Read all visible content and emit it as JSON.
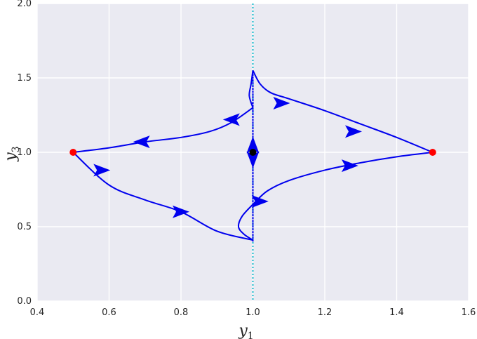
{
  "chart_data": {
    "type": "line",
    "xlabel": "y",
    "xlabel_sub": "1",
    "ylabel": "y",
    "ylabel_sub": "3",
    "xlim": [
      0.4,
      1.6
    ],
    "ylim": [
      0.0,
      2.0
    ],
    "xticks": [
      "0.4",
      "0.6",
      "0.8",
      "1.0",
      "1.2",
      "1.4",
      "1.6"
    ],
    "yticks": [
      "0.0",
      "0.5",
      "1.0",
      "1.5",
      "2.0"
    ],
    "grid": true,
    "background": "#eaeaf2",
    "colors": {
      "trajectory": "#0000ee",
      "vertical_line": "#17becf",
      "endpoint": "#ff0000",
      "center": "#000000"
    },
    "vertical_line_x": 1.0,
    "endpoints": [
      {
        "x": 0.5,
        "y": 1.0
      },
      {
        "x": 1.5,
        "y": 1.0
      }
    ],
    "center_point": {
      "x": 1.0,
      "y": 1.0
    },
    "trajectories": [
      {
        "points": [
          [
            0.5,
            1.0
          ],
          [
            0.6,
            1.03
          ],
          [
            0.7,
            1.07
          ],
          [
            0.8,
            1.1
          ],
          [
            0.88,
            1.14
          ],
          [
            0.94,
            1.2
          ],
          [
            1.0,
            1.3
          ]
        ]
      },
      {
        "points": [
          [
            1.0,
            1.3
          ],
          [
            0.99,
            1.38
          ],
          [
            0.995,
            1.46
          ],
          [
            1.0,
            1.55
          ]
        ]
      },
      {
        "points": [
          [
            1.0,
            1.55
          ],
          [
            1.02,
            1.46
          ],
          [
            1.05,
            1.4
          ],
          [
            1.1,
            1.36
          ],
          [
            1.2,
            1.28
          ],
          [
            1.3,
            1.19
          ],
          [
            1.4,
            1.1
          ],
          [
            1.5,
            1.0
          ]
        ]
      },
      {
        "points": [
          [
            1.5,
            1.0
          ],
          [
            1.4,
            0.97
          ],
          [
            1.3,
            0.93
          ],
          [
            1.2,
            0.88
          ],
          [
            1.1,
            0.81
          ],
          [
            1.04,
            0.74
          ],
          [
            1.0,
            0.65
          ]
        ]
      },
      {
        "points": [
          [
            1.0,
            0.65
          ],
          [
            0.97,
            0.57
          ],
          [
            0.96,
            0.5
          ],
          [
            0.975,
            0.45
          ],
          [
            1.0,
            0.41
          ]
        ]
      },
      {
        "points": [
          [
            1.0,
            0.41
          ],
          [
            0.9,
            0.47
          ],
          [
            0.8,
            0.6
          ],
          [
            0.7,
            0.68
          ],
          [
            0.6,
            0.78
          ],
          [
            0.5,
            1.0
          ]
        ]
      },
      {
        "points": [
          [
            1.0,
            0.4
          ],
          [
            1.0,
            1.55
          ]
        ]
      }
    ],
    "arrows": [
      {
        "x": 0.69,
        "y": 1.07,
        "dir": "left"
      },
      {
        "x": 0.94,
        "y": 1.22,
        "dir": "left"
      },
      {
        "x": 1.08,
        "y": 1.33,
        "dir": "right"
      },
      {
        "x": 1.28,
        "y": 1.14,
        "dir": "right"
      },
      {
        "x": 1.27,
        "y": 0.91,
        "dir": "right"
      },
      {
        "x": 1.02,
        "y": 0.67,
        "dir": "right"
      },
      {
        "x": 0.58,
        "y": 0.88,
        "dir": "right"
      },
      {
        "x": 0.8,
        "y": 0.6,
        "dir": "right"
      },
      {
        "x": 1.0,
        "y": 1.05,
        "dir": "up"
      },
      {
        "x": 1.0,
        "y": 0.95,
        "dir": "down"
      }
    ]
  }
}
